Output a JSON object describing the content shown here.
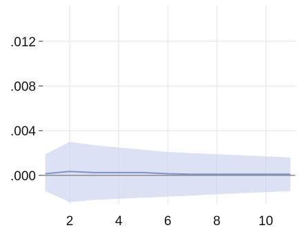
{
  "chart_data": {
    "type": "line",
    "title": "",
    "xlabel": "",
    "ylabel": "",
    "x": [
      1,
      2,
      3,
      4,
      5,
      6,
      7,
      8,
      9,
      10,
      11
    ],
    "xlim": [
      0.9,
      11.2
    ],
    "ylim": [
      -0.0026,
      0.0152
    ],
    "x_ticks": [
      2,
      4,
      6,
      8,
      10
    ],
    "x_tick_labels": [
      "2",
      "4",
      "6",
      "8",
      "10"
    ],
    "y_ticks": [
      0.0,
      0.004,
      0.008,
      0.012
    ],
    "y_tick_labels": [
      ".000",
      ".004",
      ".008",
      ".012"
    ],
    "grid": true,
    "zero_line": true,
    "series": [
      {
        "values": [
          0.00015,
          0.00035,
          0.00025,
          0.00025,
          0.00025,
          0.00015,
          0.0001,
          0.0001,
          0.0001,
          0.0001,
          0.0001
        ],
        "lower": [
          -0.0014,
          -0.0024,
          -0.0022,
          -0.0021,
          -0.002,
          -0.0019,
          -0.0018,
          -0.0017,
          -0.0016,
          -0.0015,
          -0.0014
        ],
        "upper": [
          0.0019,
          0.003,
          0.0027,
          0.0025,
          0.0023,
          0.0021,
          0.002,
          0.0019,
          0.0018,
          0.0017,
          0.0016
        ]
      }
    ],
    "colors": {
      "line": "#7b93c9",
      "band": "#c9d2ec",
      "zero_line": "#8a8a8a",
      "grid": "#e4e4ec"
    }
  }
}
